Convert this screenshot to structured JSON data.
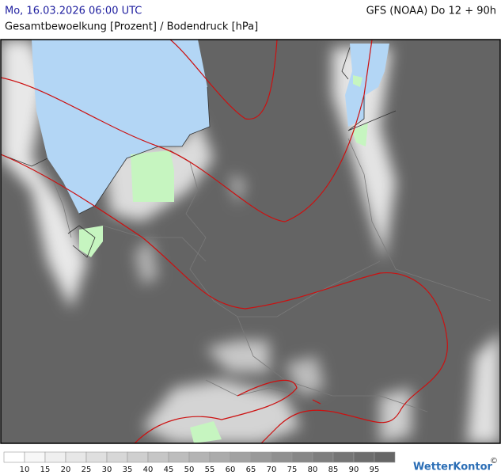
{
  "header": {
    "datetime": "Mo, 16.03.2026 06:00 UTC",
    "model": "GFS (NOAA) Do 12 + 90h",
    "subtitle": "Gesamtbewoelkung [Prozent] / Bodendruck [hPa]"
  },
  "legend": {
    "labels": [
      10,
      15,
      20,
      25,
      30,
      35,
      40,
      45,
      50,
      55,
      60,
      65,
      70,
      75,
      80,
      85,
      90,
      95
    ],
    "colors": [
      "#ffffff",
      "#f7f7f7",
      "#efefef",
      "#e7e7e7",
      "#dfdfdf",
      "#d7d7d7",
      "#cfcfcf",
      "#c6c6c6",
      "#bdbdbd",
      "#b4b4b4",
      "#ababab",
      "#a2a2a2",
      "#999999",
      "#909090",
      "#878787",
      "#7e7e7e",
      "#757575",
      "#6d6d6d",
      "#666666"
    ]
  },
  "brand": {
    "name": "WetterKontor",
    "copyright": "©"
  }
}
